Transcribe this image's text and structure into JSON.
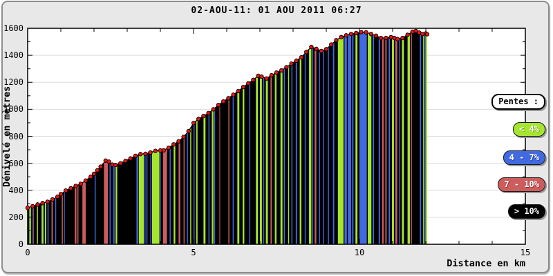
{
  "window": {
    "title": "02-AOU-11: 01 AOU 2011 06:27"
  },
  "axes": {
    "y_label": "Dénivelé en mètres",
    "x_label": "Distance en km",
    "y_ticks": [
      0,
      200,
      400,
      600,
      800,
      1000,
      1200,
      1400,
      1600
    ],
    "x_ticks": [
      0,
      5,
      10,
      15
    ],
    "x_minor_step": 1,
    "y_minor_step": 100,
    "grid_color": "#dcdcdc",
    "plot_bg": "#ffffff",
    "frame_bg": "#e8e8e8"
  },
  "legend": {
    "title": "Pentes :",
    "title_bg": "#ffffff",
    "title_color": "#000000",
    "items": [
      {
        "label": "< 4%",
        "class": "lt4",
        "text_color": "#ffffff"
      },
      {
        "label": "4 - 7%",
        "class": "b47",
        "text_color": "#ffffff"
      },
      {
        "label": "7 - 10%",
        "class": "b710",
        "text_color": "#ffffff"
      },
      {
        "label": "> 10%",
        "class": "gt10",
        "text_color": "#ffffff"
      }
    ]
  },
  "chart_data": {
    "type": "area",
    "title": "02-AOU-11: 01 AOU 2011 06:27",
    "xlabel": "Distance en km",
    "ylabel": "Dénivelé en mètres",
    "xlim": [
      0,
      15
    ],
    "ylim": [
      0,
      1600
    ],
    "grid": "horizontal",
    "line_color": "#1a0000",
    "marker_color": "#e81414",
    "marker_stroke": "#000000",
    "slope_classes": {
      "lt4": "#a6e52f",
      "b47": "#4169e1",
      "b710": "#cd5c5c",
      "gt10": "#000000"
    },
    "default_class": "gt10",
    "profile": {
      "x": [
        0,
        0.15,
        0.3,
        0.45,
        0.6,
        0.75,
        0.9,
        1.0,
        1.15,
        1.3,
        1.45,
        1.6,
        1.75,
        1.9,
        2.0,
        2.1,
        2.2,
        2.35,
        2.45,
        2.55,
        2.65,
        2.8,
        2.95,
        3.1,
        3.25,
        3.4,
        3.55,
        3.7,
        3.85,
        4.0,
        4.1,
        4.25,
        4.4,
        4.55,
        4.7,
        4.85,
        5.0,
        5.15,
        5.3,
        5.45,
        5.6,
        5.75,
        5.9,
        6.05,
        6.2,
        6.35,
        6.5,
        6.65,
        6.8,
        6.95,
        7.05,
        7.2,
        7.35,
        7.5,
        7.65,
        7.8,
        7.95,
        8.1,
        8.25,
        8.4,
        8.55,
        8.7,
        8.85,
        9.0,
        9.15,
        9.3,
        9.45,
        9.6,
        9.75,
        9.9,
        10.05,
        10.2,
        10.35,
        10.5,
        10.65,
        10.8,
        10.95,
        11.05,
        11.15,
        11.3,
        11.45,
        11.6,
        11.7,
        11.8,
        11.9,
        12.0,
        12.04
      ],
      "y": [
        270,
        282,
        295,
        305,
        315,
        332,
        352,
        372,
        398,
        415,
        432,
        448,
        472,
        500,
        522,
        548,
        575,
        620,
        612,
        590,
        588,
        600,
        618,
        636,
        655,
        668,
        670,
        680,
        692,
        695,
        696,
        715,
        740,
        762,
        795,
        838,
        898,
        928,
        950,
        972,
        1000,
        1032,
        1058,
        1082,
        1108,
        1135,
        1165,
        1192,
        1218,
        1248,
        1242,
        1228,
        1252,
        1272,
        1288,
        1312,
        1338,
        1360,
        1385,
        1425,
        1462,
        1448,
        1432,
        1445,
        1480,
        1512,
        1535,
        1548,
        1558,
        1565,
        1572,
        1570,
        1558,
        1545,
        1528,
        1528,
        1535,
        1528,
        1520,
        1528,
        1552,
        1575,
        1580,
        1568,
        1558,
        1562,
        1556
      ]
    },
    "slope_segments": [
      [
        0.05,
        0.1,
        "lt4"
      ],
      [
        0.13,
        0.15,
        "b47"
      ],
      [
        0.17,
        0.19,
        "b710"
      ],
      [
        0.28,
        0.31,
        "lt4"
      ],
      [
        0.42,
        0.47,
        "lt4"
      ],
      [
        0.48,
        0.5,
        "b47"
      ],
      [
        0.52,
        0.56,
        "lt4"
      ],
      [
        0.6,
        0.63,
        "b47"
      ],
      [
        0.72,
        0.76,
        "b710"
      ],
      [
        0.83,
        0.86,
        "b47"
      ],
      [
        1.03,
        1.06,
        "b710"
      ],
      [
        1.1,
        1.12,
        "b47"
      ],
      [
        1.42,
        1.47,
        "b710"
      ],
      [
        1.5,
        1.53,
        "b710"
      ],
      [
        1.65,
        1.75,
        "b710"
      ],
      [
        2.02,
        2.05,
        "b47"
      ],
      [
        2.3,
        2.42,
        "b710"
      ],
      [
        2.47,
        2.5,
        "b47"
      ],
      [
        2.58,
        2.62,
        "b47"
      ],
      [
        2.65,
        2.7,
        "lt4"
      ],
      [
        3.28,
        3.33,
        "b47"
      ],
      [
        3.35,
        3.5,
        "lt4"
      ],
      [
        3.52,
        3.55,
        "b47"
      ],
      [
        3.58,
        3.61,
        "b47"
      ],
      [
        3.7,
        3.73,
        "b47"
      ],
      [
        3.75,
        3.97,
        "lt4"
      ],
      [
        3.98,
        4.01,
        "b47"
      ],
      [
        4.08,
        4.2,
        "b710"
      ],
      [
        4.28,
        4.31,
        "b47"
      ],
      [
        4.4,
        4.45,
        "lt4"
      ],
      [
        4.55,
        4.6,
        "b710"
      ],
      [
        4.7,
        4.73,
        "b710"
      ],
      [
        4.8,
        4.83,
        "b47"
      ],
      [
        4.9,
        4.93,
        "lt4"
      ],
      [
        5.0,
        5.03,
        "b47"
      ],
      [
        5.08,
        5.12,
        "lt4"
      ],
      [
        5.3,
        5.36,
        "lt4"
      ],
      [
        5.45,
        5.48,
        "b47"
      ],
      [
        5.55,
        5.6,
        "lt4"
      ],
      [
        5.62,
        5.65,
        "b47"
      ],
      [
        5.78,
        5.8,
        "b710"
      ],
      [
        6.05,
        6.08,
        "b710"
      ],
      [
        6.18,
        6.21,
        "b47"
      ],
      [
        6.32,
        6.38,
        "lt4"
      ],
      [
        6.48,
        6.53,
        "lt4"
      ],
      [
        6.68,
        6.71,
        "b47"
      ],
      [
        6.88,
        6.94,
        "lt4"
      ],
      [
        7.0,
        7.06,
        "lt4"
      ],
      [
        7.1,
        7.13,
        "b47"
      ],
      [
        7.18,
        7.24,
        "lt4"
      ],
      [
        7.32,
        7.36,
        "b710"
      ],
      [
        7.45,
        7.5,
        "lt4"
      ],
      [
        7.62,
        7.68,
        "lt4"
      ],
      [
        7.72,
        7.75,
        "b47"
      ],
      [
        7.85,
        7.88,
        "lt4"
      ],
      [
        7.95,
        7.98,
        "b47"
      ],
      [
        8.08,
        8.12,
        "b47"
      ],
      [
        8.2,
        8.25,
        "lt4"
      ],
      [
        8.35,
        8.38,
        "b47"
      ],
      [
        8.48,
        8.55,
        "lt4"
      ],
      [
        8.57,
        8.6,
        "b47"
      ],
      [
        8.65,
        8.7,
        "b710"
      ],
      [
        8.78,
        8.81,
        "b47"
      ],
      [
        8.9,
        8.93,
        "b47"
      ],
      [
        9.05,
        9.08,
        "b47"
      ],
      [
        9.2,
        9.24,
        "b47"
      ],
      [
        9.35,
        9.52,
        "lt4"
      ],
      [
        9.55,
        9.62,
        "b47"
      ],
      [
        9.65,
        9.75,
        "b47"
      ],
      [
        9.78,
        9.82,
        "b47"
      ],
      [
        9.88,
        9.94,
        "lt4"
      ],
      [
        10.0,
        10.22,
        "b47"
      ],
      [
        10.25,
        10.36,
        "lt4"
      ],
      [
        10.4,
        10.44,
        "b47"
      ],
      [
        10.58,
        10.62,
        "b47"
      ],
      [
        10.68,
        10.73,
        "b710"
      ],
      [
        10.78,
        10.82,
        "b710"
      ],
      [
        10.88,
        10.92,
        "b47"
      ],
      [
        10.98,
        11.04,
        "lt4"
      ],
      [
        11.08,
        11.14,
        "b710"
      ],
      [
        11.2,
        11.23,
        "b47"
      ],
      [
        11.28,
        11.34,
        "lt4"
      ],
      [
        11.45,
        11.52,
        "lt4"
      ],
      [
        11.55,
        11.58,
        "b710"
      ],
      [
        11.82,
        11.86,
        "b47"
      ],
      [
        11.92,
        11.96,
        "lt4"
      ],
      [
        11.98,
        12.0,
        "b47"
      ],
      [
        12.0,
        12.04,
        "lt4"
      ]
    ]
  }
}
